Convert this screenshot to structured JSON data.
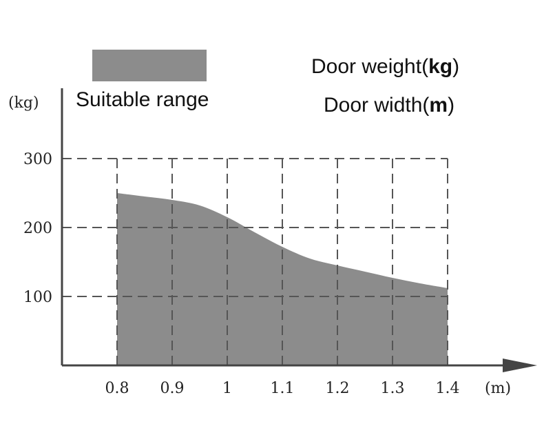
{
  "chart_data": {
    "type": "area",
    "legend": {
      "label": "Suitable range",
      "color": "#8c8c8c",
      "placement": "top-left"
    },
    "annotations": {
      "weight_label": "Door weight",
      "weight_unit": "kg",
      "width_label": "Door width",
      "width_unit": "m"
    },
    "ylabel": "(kg)",
    "xlabel": "(m)",
    "xlim": [
      0.8,
      1.4
    ],
    "ylim": [
      0,
      300
    ],
    "x_ticks": [
      "0.8",
      "0.9",
      "1",
      "1.1",
      "1.2",
      "1.3",
      "1.4"
    ],
    "x_tick_values": [
      0.8,
      0.9,
      1.0,
      1.1,
      1.2,
      1.3,
      1.4
    ],
    "y_ticks": [
      "100",
      "200",
      "300"
    ],
    "y_tick_values": [
      100,
      200,
      300
    ],
    "grid": true,
    "grid_style": "dashed",
    "series": [
      {
        "x": [
          0.8,
          0.85,
          0.9,
          0.95,
          1.0,
          1.05,
          1.1,
          1.15,
          1.2,
          1.25,
          1.3,
          1.35,
          1.4
        ],
        "values": [
          250,
          245,
          240,
          232,
          215,
          193,
          172,
          155,
          145,
          136,
          127,
          119,
          112
        ]
      }
    ]
  }
}
